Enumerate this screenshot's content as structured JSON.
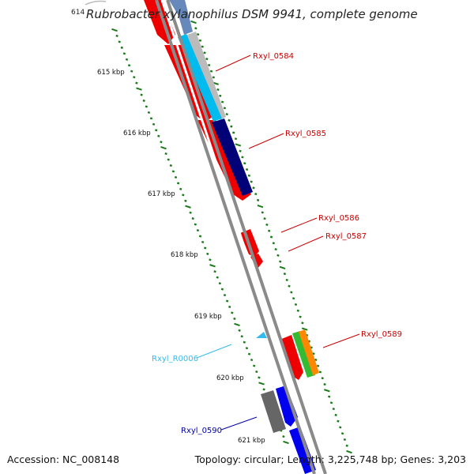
{
  "title": "Rubrobacter xylanophilus DSM 9941, complete genome",
  "title_start_tick": "614",
  "footer": {
    "accession": "Accession: NC_008148",
    "summary": "Topology: circular; Length: 3,225,748 bp; Genes: 3,203"
  },
  "colors": {
    "backbone": "#8a8a8a",
    "tick": "#1a7a1a",
    "gene_label": "#cc0000",
    "rna_label": "#33bbee",
    "blue_label": "#0000aa"
  },
  "kbp_ticks": [
    "615 kbp",
    "616 kbp",
    "617 kbp",
    "618 kbp",
    "619 kbp",
    "620 kbp",
    "621 kbp"
  ],
  "gene_labels": [
    {
      "text": "Rxyl_0584",
      "color": "#cc0000"
    },
    {
      "text": "Rxyl_0585",
      "color": "#cc0000"
    },
    {
      "text": "Rxyl_0586",
      "color": "#cc0000"
    },
    {
      "text": "Rxyl_0587",
      "color": "#cc0000"
    },
    {
      "text": "Rxyl_0589",
      "color": "#cc0000"
    },
    {
      "text": "Rxyl_R0006",
      "color": "#33bbee"
    },
    {
      "text": "Rxyl_0590",
      "color": "#0000aa"
    }
  ]
}
